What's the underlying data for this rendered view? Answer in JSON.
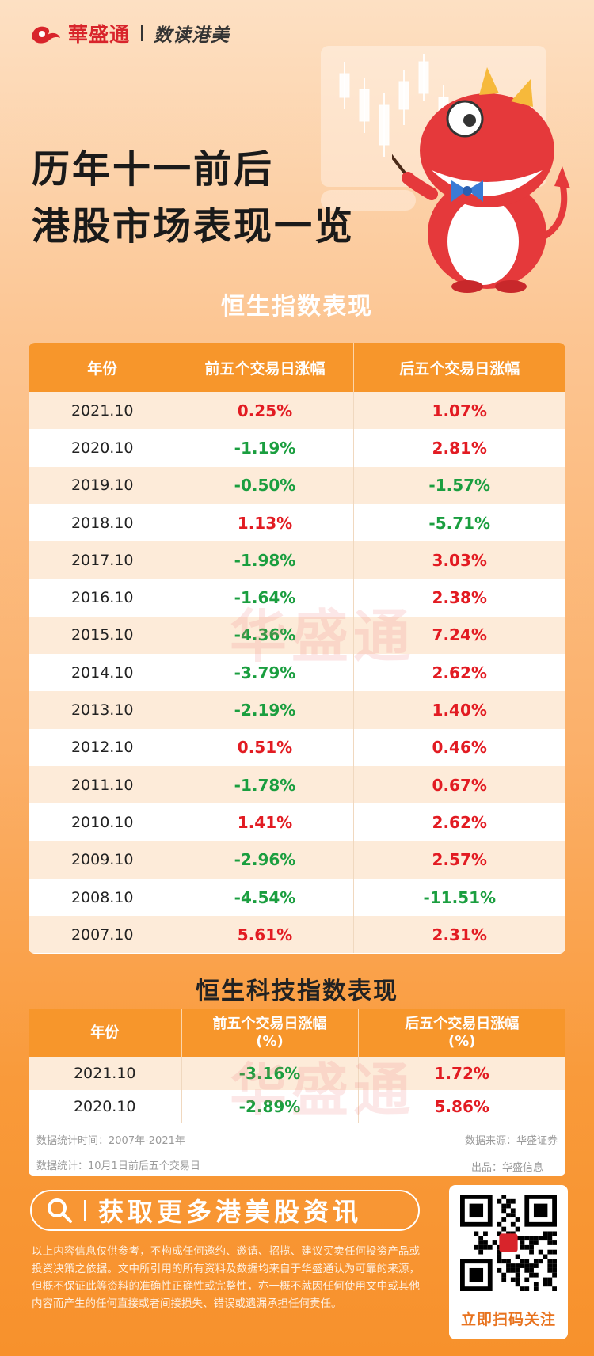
{
  "header": {
    "brand_name": "華盛通",
    "sub_name": "数读港美"
  },
  "title": {
    "line1": "历年十一前后",
    "line2": "港股市场表现一览"
  },
  "section1": {
    "title": "恒生指数表现",
    "columns": [
      "年份",
      "前五个交易日涨幅",
      "后五个交易日涨幅"
    ],
    "rows": [
      {
        "year": "2021.10",
        "before": "0.25%",
        "after": "1.07%"
      },
      {
        "year": "2020.10",
        "before": "-1.19%",
        "after": "2.81%"
      },
      {
        "year": "2019.10",
        "before": "-0.50%",
        "after": "-1.57%"
      },
      {
        "year": "2018.10",
        "before": "1.13%",
        "after": "-5.71%"
      },
      {
        "year": "2017.10",
        "before": "-1.98%",
        "after": "3.03%"
      },
      {
        "year": "2016.10",
        "before": "-1.64%",
        "after": "2.38%"
      },
      {
        "year": "2015.10",
        "before": "-4.36%",
        "after": "7.24%"
      },
      {
        "year": "2014.10",
        "before": "-3.79%",
        "after": "2.62%"
      },
      {
        "year": "2013.10",
        "before": "-2.19%",
        "after": "1.40%"
      },
      {
        "year": "2012.10",
        "before": "0.51%",
        "after": "0.46%"
      },
      {
        "year": "2011.10",
        "before": "-1.78%",
        "after": "0.67%"
      },
      {
        "year": "2010.10",
        "before": "1.41%",
        "after": "2.62%"
      },
      {
        "year": "2009.10",
        "before": "-2.96%",
        "after": "2.57%"
      },
      {
        "year": "2008.10",
        "before": "-4.54%",
        "after": "-11.51%"
      },
      {
        "year": "2007.10",
        "before": "5.61%",
        "after": "2.31%"
      }
    ]
  },
  "section2": {
    "title": "恒生科技指数表现",
    "columns": [
      "年份",
      "前五个交易日涨幅\n(%)",
      "后五个交易日涨幅\n(%)"
    ],
    "rows": [
      {
        "year": "2021.10",
        "before": "-3.16%",
        "after": "1.72%"
      },
      {
        "year": "2020.10",
        "before": "-2.89%",
        "after": "5.86%"
      }
    ]
  },
  "watermark": "华盛通",
  "notes": {
    "period": "数据统计时间：2007年-2021年",
    "scope": "数据统计：10月1日前后五个交易日",
    "source": "数据来源：华盛证券",
    "publisher": "出品：华盛信息"
  },
  "search": {
    "label": "获取更多港美股资讯"
  },
  "disclaimer": "以上内容信息仅供参考，不构成任何邀约、邀请、招揽、建议买卖任何投资产品或投资决策之依据。文中所引用的所有资料及数据均来自于华盛通认为可靠的来源，但概不保证此等资料的准确性正确性或完整性，亦一概不就因任何使用文中或其他内容而产生的任何直接或者间接损失、错误或遗漏承担任何责任。",
  "qr": {
    "label": "立即扫码关注"
  },
  "colors": {
    "up": "#e21b22",
    "down": "#1a9e3f",
    "header_orange": "#f7962b",
    "brand_red": "#d8242b"
  }
}
